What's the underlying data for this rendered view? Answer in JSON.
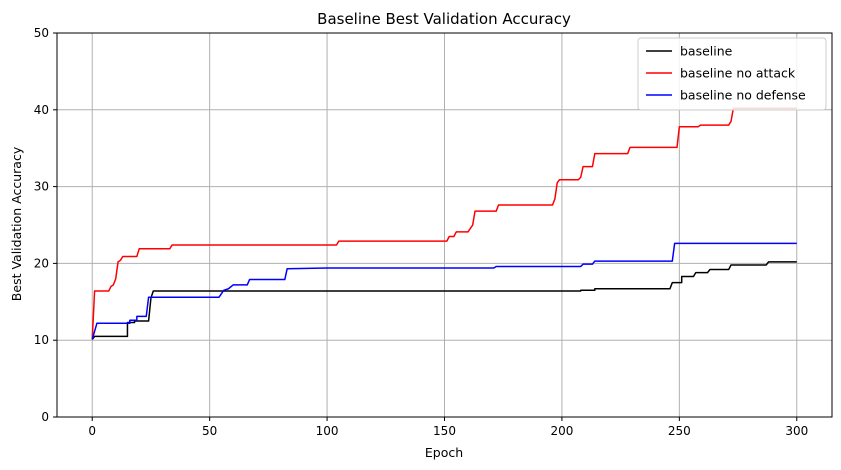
{
  "chart_data": {
    "type": "line",
    "title": "Baseline Best Validation Accuracy",
    "xlabel": "Epoch",
    "ylabel": "Best Validation Accuracy",
    "xlim": [
      -15,
      315
    ],
    "ylim": [
      0,
      50
    ],
    "xticks": [
      0,
      50,
      100,
      150,
      200,
      250,
      300
    ],
    "yticks": [
      0,
      10,
      20,
      30,
      40,
      50
    ],
    "grid": true,
    "legend": "top-right",
    "series": [
      {
        "name": "baseline",
        "color": "#000000",
        "points": [
          [
            0,
            10.1
          ],
          [
            1,
            10.5
          ],
          [
            15,
            10.5
          ],
          [
            15,
            12.3
          ],
          [
            18,
            12.3
          ],
          [
            18,
            12.5
          ],
          [
            24,
            12.5
          ],
          [
            25,
            15.5
          ],
          [
            26,
            16.4
          ],
          [
            208,
            16.4
          ],
          [
            208,
            16.5
          ],
          [
            214,
            16.5
          ],
          [
            214,
            16.7
          ],
          [
            246,
            16.7
          ],
          [
            247,
            17.5
          ],
          [
            251,
            17.5
          ],
          [
            251,
            18.3
          ],
          [
            256,
            18.3
          ],
          [
            257,
            18.8
          ],
          [
            262,
            18.8
          ],
          [
            263,
            19.2
          ],
          [
            271,
            19.2
          ],
          [
            272,
            19.8
          ],
          [
            287,
            19.8
          ],
          [
            288,
            20.2
          ],
          [
            300,
            20.2
          ]
        ]
      },
      {
        "name": "baseline no attack",
        "color": "#ff0000",
        "points": [
          [
            0,
            10.1
          ],
          [
            1,
            16.4
          ],
          [
            7,
            16.4
          ],
          [
            8,
            17.0
          ],
          [
            9,
            17.2
          ],
          [
            10,
            18.0
          ],
          [
            11,
            20.2
          ],
          [
            12,
            20.4
          ],
          [
            13,
            20.9
          ],
          [
            19,
            20.9
          ],
          [
            20,
            21.9
          ],
          [
            33,
            21.9
          ],
          [
            34,
            22.4
          ],
          [
            104,
            22.4
          ],
          [
            105,
            22.9
          ],
          [
            151,
            22.9
          ],
          [
            152,
            23.5
          ],
          [
            154,
            23.5
          ],
          [
            155,
            24.1
          ],
          [
            160,
            24.1
          ],
          [
            162,
            25.0
          ],
          [
            163,
            26.8
          ],
          [
            172,
            26.8
          ],
          [
            173,
            27.6
          ],
          [
            196,
            27.6
          ],
          [
            197,
            28.4
          ],
          [
            198,
            30.5
          ],
          [
            199,
            30.9
          ],
          [
            207,
            30.9
          ],
          [
            208,
            31.2
          ],
          [
            209,
            32.6
          ],
          [
            213,
            32.6
          ],
          [
            214,
            34.3
          ],
          [
            228,
            34.3
          ],
          [
            229,
            35.1
          ],
          [
            249,
            35.1
          ],
          [
            250,
            37.8
          ],
          [
            258,
            37.8
          ],
          [
            259,
            38.0
          ],
          [
            271,
            38.0
          ],
          [
            272,
            38.5
          ],
          [
            273,
            40.2
          ],
          [
            300,
            40.2
          ]
        ]
      },
      {
        "name": "baseline no defense",
        "color": "#0000ff",
        "points": [
          [
            0,
            10.1
          ],
          [
            2,
            12.2
          ],
          [
            16,
            12.2
          ],
          [
            16,
            12.6
          ],
          [
            19,
            12.6
          ],
          [
            19,
            13.1
          ],
          [
            23,
            13.1
          ],
          [
            24,
            15.6
          ],
          [
            54,
            15.6
          ],
          [
            56,
            16.5
          ],
          [
            58,
            16.7
          ],
          [
            60,
            17.2
          ],
          [
            66,
            17.2
          ],
          [
            67,
            17.9
          ],
          [
            82,
            17.9
          ],
          [
            83,
            19.3
          ],
          [
            100,
            19.4
          ],
          [
            171,
            19.4
          ],
          [
            172,
            19.6
          ],
          [
            208,
            19.6
          ],
          [
            209,
            19.9
          ],
          [
            213,
            19.9
          ],
          [
            214,
            20.3
          ],
          [
            247,
            20.3
          ],
          [
            248,
            22.6
          ],
          [
            300,
            22.6
          ]
        ]
      }
    ]
  }
}
